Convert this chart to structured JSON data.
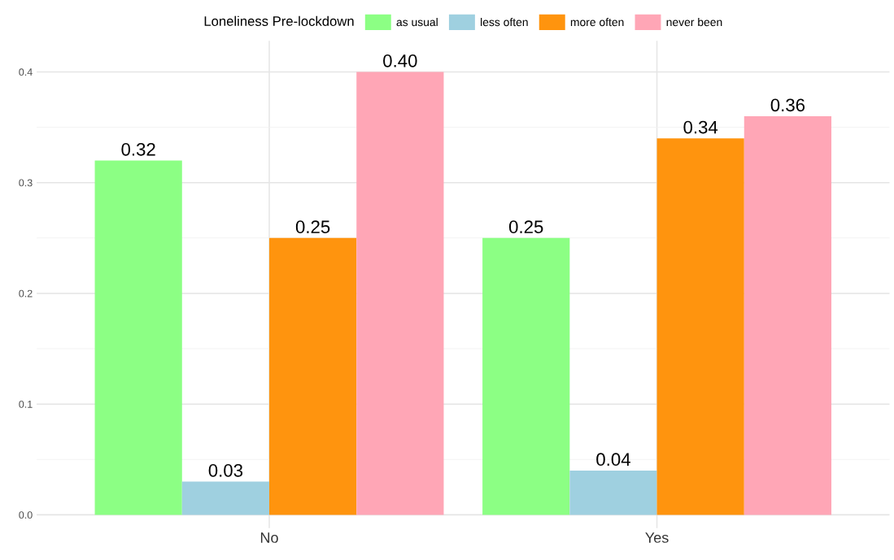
{
  "chart_data": {
    "type": "bar",
    "categories": [
      "No",
      "Yes"
    ],
    "legend_title": "Loneliness Pre-lockdown",
    "series": [
      {
        "name": "as usual",
        "color": "#8cff84",
        "values": [
          0.32,
          0.25
        ],
        "value_labels": [
          "0.32",
          "0.25"
        ]
      },
      {
        "name": "less often",
        "color": "#9fd0e0",
        "values": [
          0.03,
          0.04
        ],
        "value_labels": [
          "0.03",
          "0.04"
        ]
      },
      {
        "name": "more often",
        "color": "#ff940e",
        "values": [
          0.25,
          0.34
        ],
        "value_labels": [
          "0.25",
          "0.34"
        ]
      },
      {
        "name": "never been",
        "color": "#ffa6b6",
        "values": [
          0.4,
          0.36
        ],
        "value_labels": [
          "0.40",
          "0.36"
        ]
      }
    ],
    "ylim": [
      -0.012,
      0.428
    ],
    "yticks": [
      {
        "value": 0,
        "label": "0.0"
      },
      {
        "value": 0.1,
        "label": "0.1"
      },
      {
        "value": 0.2,
        "label": "0.2"
      },
      {
        "value": 0.3,
        "label": "0.3"
      },
      {
        "value": 0.4,
        "label": "0.4"
      }
    ],
    "grid": true,
    "legend": "top"
  }
}
